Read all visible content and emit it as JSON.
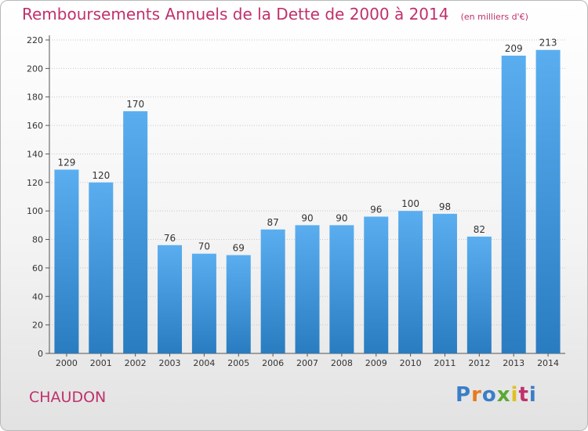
{
  "title": "Remboursements Annuels de la Dette de 2000 à 2014",
  "unit": "(en milliers d'€)",
  "place": "CHAUDON",
  "logo": {
    "text": "Proxiti",
    "colors": [
      "#3a7ec8",
      "#e87a1e",
      "#3a7ec8",
      "#5aa834",
      "#e0c020",
      "#c0306c",
      "#3a7ec8"
    ]
  },
  "chart_data": {
    "type": "bar",
    "categories": [
      "2000",
      "2001",
      "2002",
      "2003",
      "2004",
      "2005",
      "2006",
      "2007",
      "2008",
      "2009",
      "2010",
      "2011",
      "2012",
      "2013",
      "2014"
    ],
    "values": [
      129,
      120,
      170,
      76,
      70,
      69,
      87,
      90,
      90,
      96,
      100,
      98,
      82,
      209,
      213
    ],
    "ylim": [
      0,
      220
    ],
    "yticks": [
      0,
      20,
      40,
      60,
      80,
      100,
      120,
      140,
      160,
      180,
      200,
      220
    ],
    "grid": true,
    "bar_color_top": "#5aaef0",
    "bar_color_bottom": "#2a7cc0"
  }
}
